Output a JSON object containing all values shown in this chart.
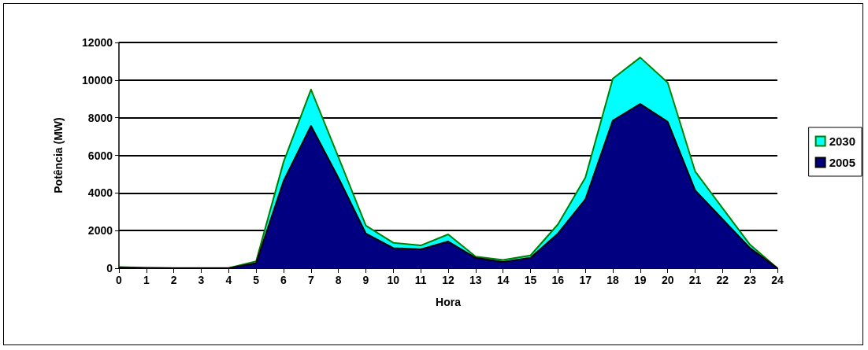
{
  "chart_data": {
    "type": "area",
    "xlabel": "Hora",
    "ylabel": "Potência (MW)",
    "x": [
      0,
      1,
      2,
      3,
      4,
      5,
      6,
      7,
      8,
      9,
      10,
      11,
      12,
      13,
      14,
      15,
      16,
      17,
      18,
      19,
      20,
      21,
      22,
      23,
      24
    ],
    "series": [
      {
        "name": "2030",
        "color": "#00ffff",
        "values": [
          60,
          20,
          10,
          10,
          10,
          370,
          5650,
          9500,
          5900,
          2260,
          1350,
          1210,
          1800,
          620,
          440,
          680,
          2330,
          4820,
          10080,
          11200,
          9870,
          5150,
          3190,
          1250,
          0
        ]
      },
      {
        "name": "2005",
        "color": "#000080",
        "values": [
          30,
          10,
          0,
          0,
          0,
          270,
          4630,
          7570,
          4800,
          1840,
          1070,
          1000,
          1420,
          550,
          330,
          550,
          1840,
          3660,
          7850,
          8730,
          7780,
          4140,
          2610,
          1070,
          0
        ]
      }
    ],
    "xlim": [
      0,
      24
    ],
    "xticks": [
      0,
      1,
      2,
      3,
      4,
      5,
      6,
      7,
      8,
      9,
      10,
      11,
      12,
      13,
      14,
      15,
      16,
      17,
      18,
      19,
      20,
      21,
      22,
      23,
      24
    ],
    "ylim": [
      0,
      12000
    ],
    "yticks": [
      0,
      2000,
      4000,
      6000,
      8000,
      10000,
      12000
    ],
    "grid": "y",
    "legend": "right"
  }
}
